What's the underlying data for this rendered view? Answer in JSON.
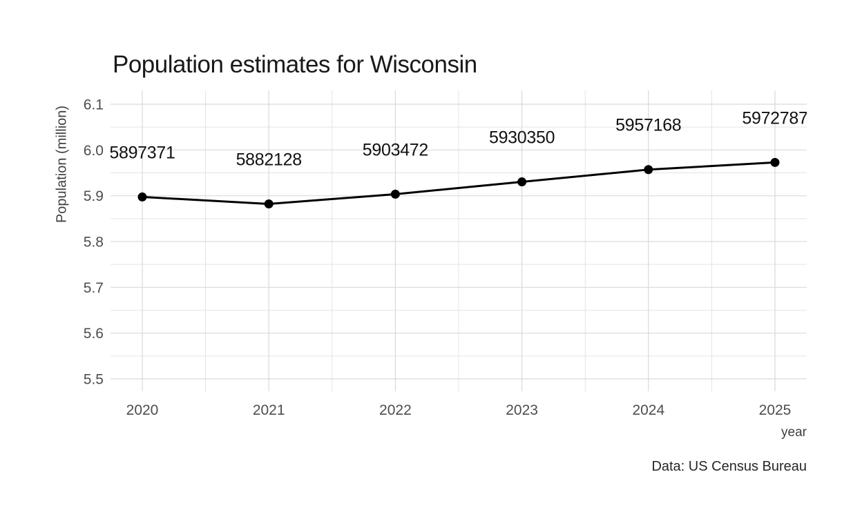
{
  "page": {
    "background": "#ffffff"
  },
  "chart_data": {
    "type": "line",
    "title": "Population estimates for Wisconsin",
    "xlabel": "year",
    "ylabel": "Population (million)",
    "caption": "Data: US Census Bureau",
    "x": [
      2020,
      2021,
      2022,
      2023,
      2024,
      2025
    ],
    "series": [
      {
        "name": "population",
        "values": [
          5897371,
          5882128,
          5903472,
          5930350,
          5957168,
          5972787
        ]
      }
    ],
    "values_million": [
      5.897371,
      5.882128,
      5.903472,
      5.93035,
      5.957168,
      5.972787
    ],
    "point_labels": [
      "5897371",
      "5882128",
      "5903472",
      "5930350",
      "5957168",
      "5972787"
    ],
    "x_tick_labels": [
      "2020",
      "2021",
      "2022",
      "2023",
      "2024",
      "2025"
    ],
    "y_tick_labels": [
      "6.1",
      "6.0",
      "5.9",
      "5.8",
      "5.7",
      "5.6",
      "5.5"
    ],
    "ylim": [
      5.5,
      6.1
    ],
    "xlim": [
      2020,
      2025
    ],
    "y_major_step": 0.1,
    "y_minor_step": 0.05,
    "grid": "major+minor",
    "legend": "none",
    "colors": {
      "line": "#000000",
      "point": "#000000",
      "grid_major": "#d9d9d9",
      "grid_minor": "#e4e4e4",
      "tick_label": "#4d4d4d",
      "axis_title": "#3f3f3f",
      "title": "#191919",
      "data_label": "#111111",
      "caption": "#262626",
      "background": "#ffffff"
    }
  }
}
